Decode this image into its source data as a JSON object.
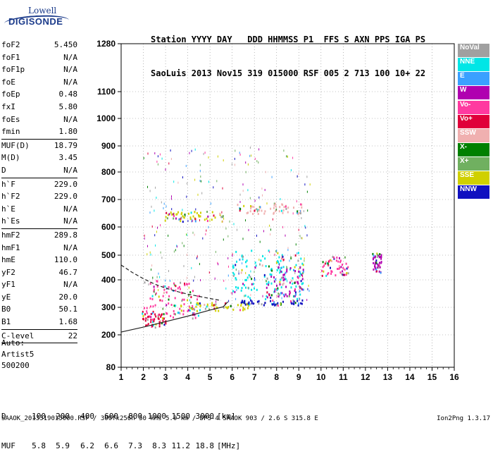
{
  "logo": {
    "line1": "Lowell",
    "line2": "DIGISONDE"
  },
  "header": {
    "labels": "Station YYYY DAY   DDD HHMMSS P1  FFS S AXN PPS IGA PS",
    "values": "SaoLuis 2013 Nov15 319 015000 RSF 005 2 713 100 10+ 22"
  },
  "params": {
    "group1": [
      {
        "label": "foF2",
        "value": "5.450"
      },
      {
        "label": "foF1",
        "value": "N/A"
      },
      {
        "label": "foF1p",
        "value": "N/A"
      },
      {
        "label": "foE",
        "value": "N/A"
      },
      {
        "label": "foEp",
        "value": "0.48"
      },
      {
        "label": "fxI",
        "value": "5.80"
      },
      {
        "label": "foEs",
        "value": "N/A"
      },
      {
        "label": "fmin",
        "value": "1.80"
      }
    ],
    "group2": [
      {
        "label": "MUF(D)",
        "value": "18.79"
      },
      {
        "label": "M(D)",
        "value": "3.45"
      },
      {
        "label": "D",
        "value": "N/A"
      }
    ],
    "group3": [
      {
        "label": "h`F",
        "value": "229.0"
      },
      {
        "label": "h`F2",
        "value": "229.0"
      },
      {
        "label": "h`E",
        "value": "N/A"
      },
      {
        "label": "h`Es",
        "value": "N/A"
      }
    ],
    "group4": [
      {
        "label": "hmF2",
        "value": "289.8"
      },
      {
        "label": "hmF1",
        "value": "N/A"
      },
      {
        "label": "hmE",
        "value": "110.0"
      },
      {
        "label": "yF2",
        "value": "46.7"
      },
      {
        "label": "yF1",
        "value": "N/A"
      },
      {
        "label": "yE",
        "value": "20.0"
      },
      {
        "label": "B0",
        "value": "50.1"
      },
      {
        "label": "B1",
        "value": "1.68"
      }
    ],
    "group5": [
      {
        "label": "C-level",
        "value": "22"
      }
    ]
  },
  "auto": {
    "line1": "Auto:",
    "line2": "Artist5",
    "line3": "500200"
  },
  "legend": [
    {
      "label": "NoVal",
      "color": "#a0a0a0"
    },
    {
      "label": "NNE",
      "color": "#00e6e6"
    },
    {
      "label": "E",
      "color": "#3aa0ff"
    },
    {
      "label": "W",
      "color": "#b000b0"
    },
    {
      "label": "Vo-",
      "color": "#ff3aa0"
    },
    {
      "label": "Vo+",
      "color": "#e0003a"
    },
    {
      "label": "SSW",
      "color": "#f0b0b0"
    },
    {
      "label": "X-",
      "color": "#008000"
    },
    {
      "label": "X+",
      "color": "#70b060"
    },
    {
      "label": "SSE",
      "color": "#d0d000"
    },
    {
      "label": "NNW",
      "color": "#1010c0"
    }
  ],
  "chart_data": {
    "type": "scatter",
    "xlabel": "",
    "ylabel": "",
    "x_ticks": [
      1,
      2,
      3,
      4,
      5,
      6,
      7,
      8,
      9,
      10,
      11,
      12,
      13,
      14,
      15,
      16
    ],
    "y_ticks": [
      80,
      200,
      300,
      400,
      500,
      600,
      700,
      800,
      900,
      1000,
      1100,
      1280
    ],
    "xlim": [
      1,
      16
    ],
    "ylim": [
      80,
      1280
    ],
    "grid": true,
    "clusters": [
      {
        "name": "Vo+",
        "color": "#e0003a",
        "freq": [
          1.9,
          3.0
        ],
        "height": [
          230,
          290
        ]
      },
      {
        "name": "Vo-",
        "color": "#ff3aa0",
        "freq": [
          2.0,
          4.5
        ],
        "height": [
          260,
          400
        ]
      },
      {
        "name": "SSE",
        "color": "#d0d000",
        "freq": [
          2.9,
          5.6
        ],
        "height": [
          620,
          660
        ]
      },
      {
        "name": "SSE",
        "color": "#d0d000",
        "freq": [
          3.5,
          6.8
        ],
        "height": [
          290,
          320
        ]
      },
      {
        "name": "NNW",
        "color": "#1010c0",
        "freq": [
          6.2,
          9.2
        ],
        "height": [
          310,
          330
        ]
      },
      {
        "name": "NNE",
        "color": "#00e6e6",
        "freq": [
          6.0,
          9.2
        ],
        "height": [
          330,
          520
        ]
      },
      {
        "name": "W",
        "color": "#b000b0",
        "freq": [
          7.5,
          9.2
        ],
        "height": [
          340,
          460
        ]
      },
      {
        "name": "Vo-",
        "color": "#ff3aa0",
        "freq": [
          10.0,
          11.2
        ],
        "height": [
          420,
          500
        ]
      },
      {
        "name": "W",
        "color": "#b000b0",
        "freq": [
          12.3,
          12.7
        ],
        "height": [
          430,
          510
        ]
      },
      {
        "name": "SSW",
        "color": "#f0b0b0",
        "freq": [
          6.2,
          9.1
        ],
        "height": [
          650,
          690
        ]
      }
    ],
    "traces": [
      {
        "name": "E-trace",
        "style": "solid",
        "freq": [
          1.0,
          2.0,
          3.0,
          4.0,
          5.0,
          5.6,
          5.8
        ],
        "height": [
          210,
          228,
          248,
          268,
          290,
          302,
          320
        ]
      },
      {
        "name": "model",
        "style": "dashed",
        "freq": [
          1.0,
          1.5,
          2.0,
          2.5,
          3.0,
          3.5,
          4.0,
          4.5,
          5.0,
          5.5
        ],
        "height": [
          460,
          430,
          405,
          385,
          370,
          358,
          348,
          340,
          332,
          325
        ]
      }
    ]
  },
  "dmuf": {
    "d_label": "D",
    "muf_label": "MUF",
    "d_values": [
      "100",
      "200",
      "400",
      "600",
      "800",
      "1000",
      "1500",
      "3000"
    ],
    "muf_values": [
      "5.8",
      "5.9",
      "6.2",
      "6.6",
      "7.3",
      "8.3",
      "11.2",
      "18.8"
    ],
    "d_unit": "[km]",
    "muf_unit": "[MHz]"
  },
  "footer": "SAAOK_2013319015000.RSF / 300fx256h 50 kHs 5.0 km / DPS-4 SAAOK 903 / 2.6 S 315.8 E",
  "version": "Ion2Png 1.3.17"
}
